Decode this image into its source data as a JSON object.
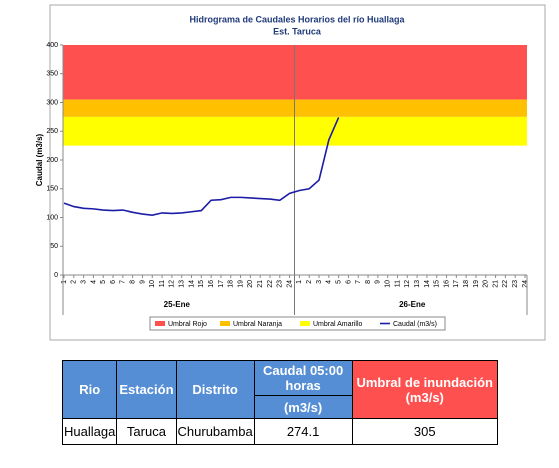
{
  "chart_data": {
    "type": "line",
    "title": "Hidrograma de Caudales Horarios del río Huallaga",
    "subtitle": "Est. Taruca",
    "y_label": "Caudal  (m3/s)",
    "categories": [
      "1",
      "2",
      "3",
      "4",
      "5",
      "6",
      "7",
      "8",
      "9",
      "10",
      "11",
      "12",
      "13",
      "14",
      "15",
      "16",
      "17",
      "18",
      "19",
      "20",
      "21",
      "22",
      "23",
      "24",
      "1",
      "2",
      "3",
      "4",
      "5",
      "6",
      "7",
      "8",
      "9",
      "10",
      "11",
      "12",
      "13",
      "14",
      "15",
      "16",
      "17",
      "18",
      "19",
      "20",
      "21",
      "22",
      "23",
      "24"
    ],
    "groups": [
      "25-Ene",
      "26-Ene"
    ],
    "bands": [
      {
        "name": "Umbral Rojo",
        "color": "#ff5050",
        "range": [
          305,
          400
        ]
      },
      {
        "name": "Umbral Naranja",
        "color": "#ffc000",
        "range": [
          275,
          305
        ]
      },
      {
        "name": "Umbral Amarillo",
        "color": "#ffff00",
        "range": [
          225,
          275
        ]
      }
    ],
    "series": [
      {
        "name": "Caudal (m3/s)",
        "color": "#1c1ca8",
        "values": [
          125,
          119,
          116,
          115,
          113,
          112,
          113,
          109,
          106,
          104,
          108,
          107,
          108,
          110,
          112,
          130,
          131,
          135,
          135,
          134,
          133,
          132,
          130,
          142,
          147,
          150,
          165,
          235,
          274.1,
          null,
          null,
          null,
          null,
          null,
          null,
          null,
          null,
          null,
          null,
          null,
          null,
          null,
          null,
          null,
          null,
          null,
          null,
          null
        ]
      }
    ],
    "ylim": [
      0,
      400
    ],
    "yticks": [
      0,
      50,
      100,
      150,
      200,
      250,
      300,
      350,
      400
    ]
  },
  "table": {
    "headers": [
      "Rio",
      "Estación",
      "Distrito",
      [
        "Caudal 05:00 horas",
        "(m3/s)"
      ],
      "Umbral de inundación (m3/s)"
    ],
    "rows": [
      [
        "Huallaga",
        "Taruca",
        "Churubamba",
        274.1,
        305
      ]
    ]
  }
}
